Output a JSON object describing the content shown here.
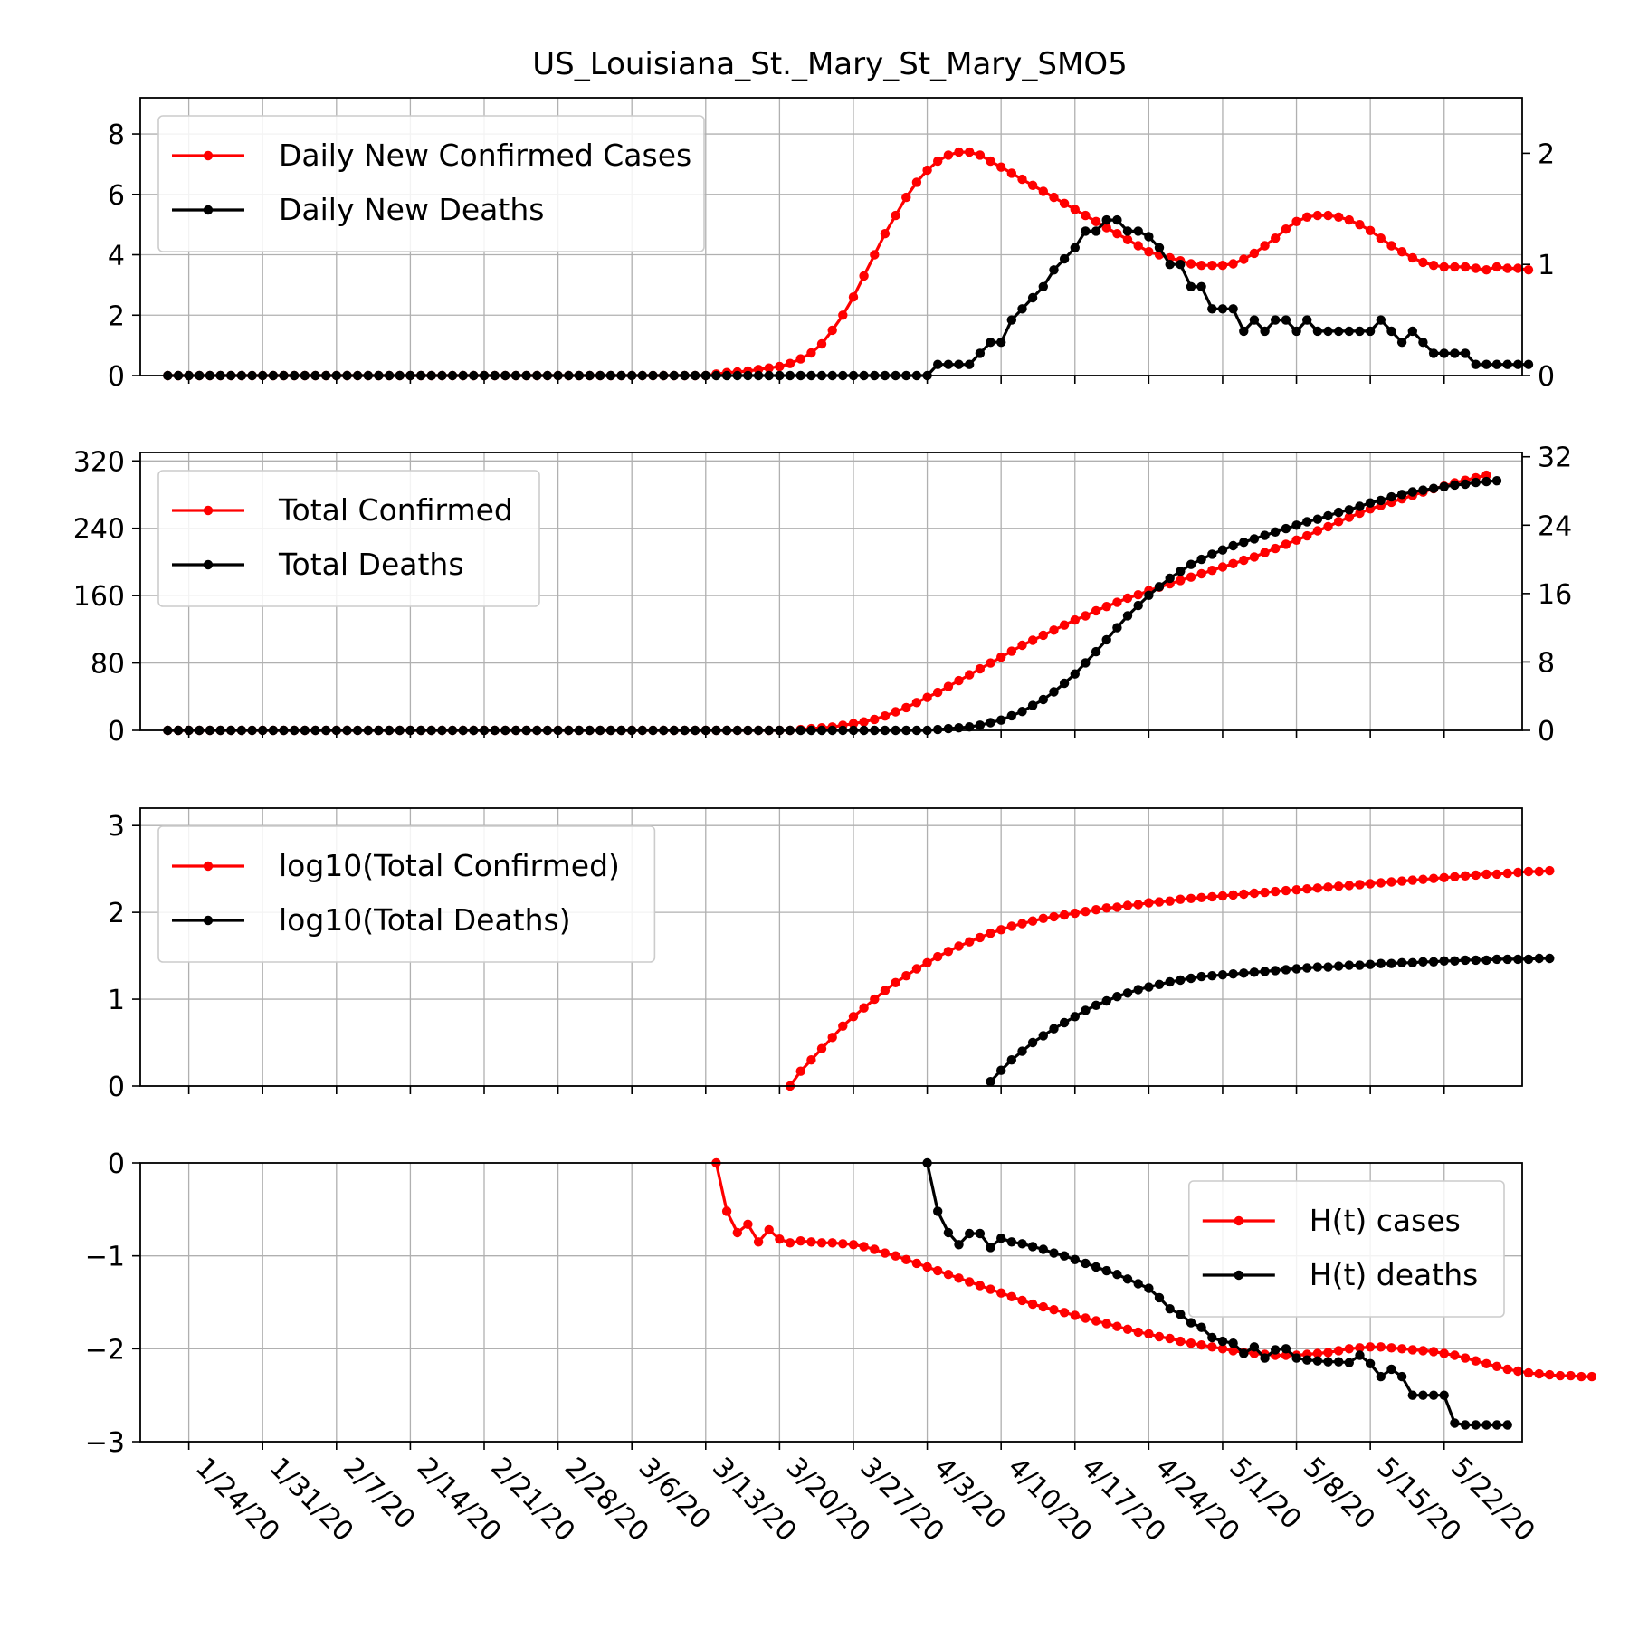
{
  "figure": {
    "title": "US_Louisiana_St._Mary_St_Mary_SMO5"
  },
  "x_axis": {
    "type": "date",
    "start_date": "2020-01-22",
    "end_date": "2020-05-26",
    "tick_labels": [
      "1/24/20",
      "1/31/20",
      "2/7/20",
      "2/14/20",
      "2/21/20",
      "2/28/20",
      "3/6/20",
      "3/13/20",
      "3/20/20",
      "3/27/20",
      "4/3/20",
      "4/10/20",
      "4/17/20",
      "4/24/20",
      "5/1/20",
      "5/8/20",
      "5/15/20",
      "5/22/20"
    ],
    "tick_dates": [
      "2020-01-24",
      "2020-01-31",
      "2020-02-07",
      "2020-02-14",
      "2020-02-21",
      "2020-02-28",
      "2020-03-06",
      "2020-03-13",
      "2020-03-20",
      "2020-03-27",
      "2020-04-03",
      "2020-04-10",
      "2020-04-17",
      "2020-04-24",
      "2020-05-01",
      "2020-05-08",
      "2020-05-15",
      "2020-05-22"
    ]
  },
  "colors": {
    "cases": "#ff0000",
    "deaths": "#000000",
    "grid": "#b0b0b0"
  },
  "chart_data": [
    {
      "type": "line",
      "panel": "daily",
      "legend_position": "top-left",
      "grid": true,
      "ylim": [
        0,
        9.2
      ],
      "yticks": [
        0,
        2,
        4,
        6,
        8
      ],
      "ylim_right": [
        0,
        2.5
      ],
      "yticks_right": [
        0,
        1,
        2
      ],
      "series": [
        {
          "name": "Daily New Confirmed Cases",
          "color": "#ff0000",
          "axis": "left",
          "x_start": "2020-01-22",
          "values": [
            0,
            0,
            0,
            0,
            0,
            0,
            0,
            0,
            0,
            0,
            0,
            0,
            0,
            0,
            0,
            0,
            0,
            0,
            0,
            0,
            0,
            0,
            0,
            0,
            0,
            0,
            0,
            0,
            0,
            0,
            0,
            0,
            0,
            0,
            0,
            0,
            0,
            0,
            0,
            0,
            0,
            0,
            0,
            0,
            0,
            0,
            0,
            0,
            0,
            0,
            0,
            0,
            0.05,
            0.1,
            0.12,
            0.15,
            0.2,
            0.25,
            0.3,
            0.4,
            0.55,
            0.75,
            1.05,
            1.5,
            2.0,
            2.6,
            3.3,
            4.0,
            4.7,
            5.3,
            5.9,
            6.4,
            6.8,
            7.1,
            7.3,
            7.4,
            7.4,
            7.3,
            7.1,
            6.9,
            6.7,
            6.5,
            6.3,
            6.1,
            5.9,
            5.7,
            5.5,
            5.3,
            5.1,
            4.9,
            4.7,
            4.5,
            4.3,
            4.1,
            4.0,
            3.9,
            3.8,
            3.7,
            3.65,
            3.65,
            3.65,
            3.7,
            3.85,
            4.05,
            4.3,
            4.55,
            4.85,
            5.1,
            5.25,
            5.3,
            5.3,
            5.25,
            5.15,
            5.0,
            4.8,
            4.55,
            4.3,
            4.1,
            3.9,
            3.75,
            3.65,
            3.6,
            3.6,
            3.6,
            3.55,
            3.5,
            3.6,
            3.55,
            3.55,
            3.5
          ]
        },
        {
          "name": "Daily New Deaths",
          "color": "#000000",
          "axis": "right",
          "x_start": "2020-01-22",
          "values": [
            0,
            0,
            0,
            0,
            0,
            0,
            0,
            0,
            0,
            0,
            0,
            0,
            0,
            0,
            0,
            0,
            0,
            0,
            0,
            0,
            0,
            0,
            0,
            0,
            0,
            0,
            0,
            0,
            0,
            0,
            0,
            0,
            0,
            0,
            0,
            0,
            0,
            0,
            0,
            0,
            0,
            0,
            0,
            0,
            0,
            0,
            0,
            0,
            0,
            0,
            0,
            0,
            0,
            0,
            0,
            0,
            0,
            0,
            0,
            0,
            0,
            0,
            0,
            0,
            0,
            0,
            0,
            0,
            0,
            0,
            0,
            0,
            0,
            0.1,
            0.1,
            0.1,
            0.1,
            0.2,
            0.3,
            0.3,
            0.5,
            0.6,
            0.7,
            0.8,
            0.95,
            1.05,
            1.15,
            1.3,
            1.3,
            1.4,
            1.4,
            1.3,
            1.3,
            1.25,
            1.15,
            1.0,
            1.0,
            0.8,
            0.8,
            0.6,
            0.6,
            0.6,
            0.4,
            0.5,
            0.4,
            0.5,
            0.5,
            0.4,
            0.5,
            0.4,
            0.4,
            0.4,
            0.4,
            0.4,
            0.4,
            0.5,
            0.4,
            0.3,
            0.4,
            0.3,
            0.2,
            0.2,
            0.2,
            0.2,
            0.1,
            0.1,
            0.1,
            0.1,
            0.1,
            0.1
          ]
        }
      ]
    },
    {
      "type": "line",
      "panel": "total",
      "legend_position": "top-left",
      "grid": true,
      "ylim": [
        0,
        330
      ],
      "yticks": [
        0,
        80,
        160,
        240,
        320
      ],
      "ylim_right": [
        0,
        32.5
      ],
      "yticks_right": [
        0,
        8,
        16,
        24,
        32
      ],
      "series": [
        {
          "name": "Total Confirmed",
          "color": "#ff0000",
          "axis": "left",
          "x_start": "2020-01-22",
          "values": [
            0,
            0,
            0,
            0,
            0,
            0,
            0,
            0,
            0,
            0,
            0,
            0,
            0,
            0,
            0,
            0,
            0,
            0,
            0,
            0,
            0,
            0,
            0,
            0,
            0,
            0,
            0,
            0,
            0,
            0,
            0,
            0,
            0,
            0,
            0,
            0,
            0,
            0,
            0,
            0,
            0,
            0,
            0,
            0,
            0,
            0,
            0,
            0,
            0,
            0,
            0,
            0,
            0,
            0,
            0,
            0,
            0,
            0,
            0,
            0,
            1,
            2,
            3,
            4,
            6,
            8,
            10,
            13,
            17,
            22,
            27,
            33,
            39,
            45,
            52,
            59,
            66,
            73,
            80,
            87,
            94,
            101,
            107,
            113,
            119,
            125,
            131,
            136,
            142,
            147,
            152,
            157,
            161,
            166,
            170,
            174,
            178,
            182,
            186,
            190,
            194,
            198,
            202,
            206,
            211,
            216,
            221,
            226,
            231,
            237,
            242,
            248,
            253,
            258,
            263,
            267,
            271,
            275,
            279,
            283,
            287,
            290,
            294,
            297,
            300,
            303
          ]
        },
        {
          "name": "Total Deaths",
          "color": "#000000",
          "axis": "right",
          "x_start": "2020-01-22",
          "values": [
            0,
            0,
            0,
            0,
            0,
            0,
            0,
            0,
            0,
            0,
            0,
            0,
            0,
            0,
            0,
            0,
            0,
            0,
            0,
            0,
            0,
            0,
            0,
            0,
            0,
            0,
            0,
            0,
            0,
            0,
            0,
            0,
            0,
            0,
            0,
            0,
            0,
            0,
            0,
            0,
            0,
            0,
            0,
            0,
            0,
            0,
            0,
            0,
            0,
            0,
            0,
            0,
            0,
            0,
            0,
            0,
            0,
            0,
            0,
            0,
            0,
            0,
            0,
            0,
            0,
            0,
            0,
            0,
            0,
            0,
            0,
            0,
            0,
            0.1,
            0.2,
            0.3,
            0.4,
            0.6,
            0.9,
            1.2,
            1.7,
            2.2,
            2.9,
            3.6,
            4.5,
            5.5,
            6.6,
            7.9,
            9.2,
            10.6,
            12.0,
            13.4,
            14.6,
            15.8,
            16.8,
            17.8,
            18.6,
            19.4,
            20.0,
            20.6,
            21.1,
            21.6,
            22.0,
            22.4,
            22.8,
            23.2,
            23.6,
            24.0,
            24.4,
            24.7,
            25.1,
            25.5,
            25.8,
            26.2,
            26.6,
            26.9,
            27.3,
            27.6,
            27.9,
            28.1,
            28.3,
            28.5,
            28.7,
            28.8,
            29.0,
            29.1,
            29.2
          ]
        }
      ]
    },
    {
      "type": "line",
      "panel": "log",
      "legend_position": "top-left",
      "grid": true,
      "ylim": [
        0,
        3.2
      ],
      "yticks": [
        0,
        1,
        2,
        3
      ],
      "series": [
        {
          "name": "log10(Total Confirmed)",
          "color": "#ff0000",
          "x_start": "2020-03-21",
          "values": [
            0.0,
            0.17,
            0.3,
            0.43,
            0.56,
            0.69,
            0.8,
            0.9,
            1.0,
            1.1,
            1.19,
            1.27,
            1.35,
            1.42,
            1.49,
            1.55,
            1.61,
            1.66,
            1.71,
            1.76,
            1.8,
            1.84,
            1.87,
            1.9,
            1.93,
            1.95,
            1.97,
            1.99,
            2.01,
            2.03,
            2.05,
            2.06,
            2.08,
            2.09,
            2.11,
            2.12,
            2.13,
            2.15,
            2.16,
            2.17,
            2.18,
            2.19,
            2.2,
            2.21,
            2.22,
            2.23,
            2.24,
            2.25,
            2.26,
            2.27,
            2.28,
            2.29,
            2.3,
            2.31,
            2.32,
            2.33,
            2.34,
            2.35,
            2.36,
            2.37,
            2.38,
            2.39,
            2.4,
            2.41,
            2.42,
            2.43,
            2.44,
            2.44,
            2.45,
            2.46,
            2.47,
            2.47,
            2.48
          ]
        },
        {
          "name": "log10(Total Deaths)",
          "color": "#000000",
          "x_start": "2020-04-09",
          "values": [
            0.05,
            0.18,
            0.3,
            0.4,
            0.5,
            0.58,
            0.66,
            0.73,
            0.8,
            0.87,
            0.93,
            0.98,
            1.03,
            1.07,
            1.11,
            1.14,
            1.17,
            1.2,
            1.22,
            1.24,
            1.26,
            1.27,
            1.28,
            1.29,
            1.3,
            1.31,
            1.32,
            1.33,
            1.34,
            1.35,
            1.36,
            1.37,
            1.37,
            1.38,
            1.39,
            1.39,
            1.4,
            1.41,
            1.41,
            1.42,
            1.42,
            1.43,
            1.43,
            1.44,
            1.44,
            1.45,
            1.45,
            1.45,
            1.46,
            1.46,
            1.46,
            1.46,
            1.47,
            1.47
          ]
        }
      ]
    },
    {
      "type": "line",
      "panel": "hazard",
      "legend_position": "top-right",
      "grid": true,
      "ylim": [
        -3,
        0
      ],
      "yticks": [
        0,
        -1,
        -2,
        -3
      ],
      "ytick_labels": [
        "0",
        "−1",
        "−2",
        "−3"
      ],
      "series": [
        {
          "name": "H(t) cases",
          "color": "#ff0000",
          "x_start": "2020-03-14",
          "values": [
            0.0,
            -0.52,
            -0.75,
            -0.66,
            -0.85,
            -0.72,
            -0.82,
            -0.86,
            -0.84,
            -0.85,
            -0.86,
            -0.86,
            -0.87,
            -0.88,
            -0.9,
            -0.93,
            -0.97,
            -1.0,
            -1.04,
            -1.08,
            -1.12,
            -1.16,
            -1.2,
            -1.24,
            -1.28,
            -1.32,
            -1.36,
            -1.4,
            -1.44,
            -1.48,
            -1.52,
            -1.55,
            -1.58,
            -1.61,
            -1.64,
            -1.67,
            -1.7,
            -1.73,
            -1.76,
            -1.79,
            -1.82,
            -1.84,
            -1.87,
            -1.89,
            -1.92,
            -1.94,
            -1.96,
            -1.98,
            -2.0,
            -2.02,
            -2.04,
            -2.05,
            -2.06,
            -2.07,
            -2.07,
            -2.07,
            -2.06,
            -2.05,
            -2.04,
            -2.02,
            -2.0,
            -1.99,
            -1.98,
            -1.98,
            -1.99,
            -2.0,
            -2.01,
            -2.02,
            -2.03,
            -2.05,
            -2.07,
            -2.1,
            -2.13,
            -2.16,
            -2.19,
            -2.22,
            -2.24,
            -2.26,
            -2.27,
            -2.28,
            -2.29,
            -2.29,
            -2.3,
            -2.3
          ]
        },
        {
          "name": "H(t) deaths",
          "color": "#000000",
          "x_start": "2020-04-03",
          "values": [
            0.0,
            -0.52,
            -0.75,
            -0.88,
            -0.76,
            -0.76,
            -0.91,
            -0.81,
            -0.85,
            -0.87,
            -0.9,
            -0.93,
            -0.97,
            -1.0,
            -1.04,
            -1.08,
            -1.12,
            -1.16,
            -1.2,
            -1.25,
            -1.3,
            -1.35,
            -1.45,
            -1.57,
            -1.63,
            -1.72,
            -1.77,
            -1.88,
            -1.92,
            -1.94,
            -2.05,
            -1.98,
            -2.1,
            -2.01,
            -2.0,
            -2.1,
            -2.12,
            -2.13,
            -2.14,
            -2.14,
            -2.15,
            -2.07,
            -2.16,
            -2.3,
            -2.22,
            -2.3,
            -2.5,
            -2.5,
            -2.5,
            -2.5,
            -2.8,
            -2.82,
            -2.82,
            -2.82,
            -2.82,
            -2.82
          ]
        }
      ]
    }
  ]
}
